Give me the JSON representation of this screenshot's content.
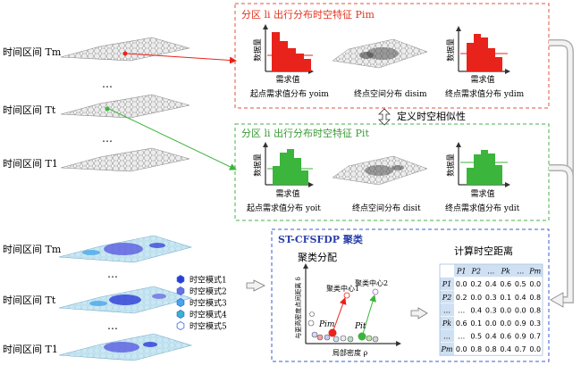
{
  "time_intervals": {
    "upper": [
      "时间区间 Tm",
      "时间区间 Tt",
      "时间区间 T1"
    ],
    "lower": [
      "时间区间 Tm",
      "时间区间 Tt",
      "时间区间 T1"
    ],
    "ellipsis": "…"
  },
  "box_top": {
    "title": "分区 li 出行分布时空特征 Pim",
    "ylabel": "数据量",
    "xlabel": "需求值",
    "captions": [
      "起点需求值分布 yoim",
      "终点空间分布 disim",
      "终点需求值分布 ydim"
    ],
    "colors": {
      "border": "#e2563f",
      "title": "#e2341f",
      "bar": "#e8231b",
      "line": "#e8231b"
    }
  },
  "similarity_label": "定义时空相似性",
  "box_mid": {
    "title": "分区 li 出行分布时空特征 Pit",
    "ylabel": "数据量",
    "xlabel": "需求值",
    "captions": [
      "起点需求值分布 yoit",
      "终点空间分布 disit",
      "终点需求值分布 ydit"
    ],
    "colors": {
      "border": "#4ab24a",
      "title": "#3a9a34",
      "bar": "#3bb53b",
      "line": "#3bb53b"
    }
  },
  "box_bottom": {
    "title": "ST-CFSFDP 聚类",
    "cluster_title": "聚类分配",
    "distance_title": "计算时空距离",
    "scatter_ylabel": "与更高密度点间距离 δ",
    "scatter_xlabel": "局部密度 ρ",
    "center1": "聚类中心1",
    "center2": "聚类中心2",
    "point_pm": "Pim",
    "point_pt": "Pit"
  },
  "matrix": {
    "header": [
      "P1",
      "P2",
      "…",
      "Pk",
      "…",
      "Pm"
    ],
    "row_labels": [
      "P1",
      "P2",
      "…",
      "Pk",
      "…",
      "Pm"
    ],
    "rows": [
      [
        "0.0",
        "0.2",
        "0.4",
        "0.6",
        "0.5",
        "0.0"
      ],
      [
        "0.2",
        "0.0",
        "0.3",
        "0.1",
        "0.4",
        "0.8"
      ],
      [
        "…",
        "0.4",
        "0.3",
        "0.0",
        "0.0",
        "0.8"
      ],
      [
        "0.6",
        "0.1",
        "0.0",
        "0.0",
        "0.9",
        "0.3"
      ],
      [
        "…",
        "0.5",
        "0.4",
        "0.6",
        "0.9",
        "0.7"
      ],
      [
        "0.0",
        "0.8",
        "0.8",
        "0.4",
        "0.7",
        "0.0"
      ]
    ]
  },
  "legend": {
    "items": [
      "时空模式1",
      "时空模式2",
      "时空模式3",
      "时空模式4",
      "时空模式5"
    ],
    "colors": [
      "#2b3bd8",
      "#6a6fe0",
      "#46a6ea",
      "#39b3c8",
      "#ffffff"
    ]
  }
}
